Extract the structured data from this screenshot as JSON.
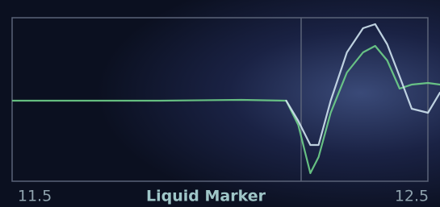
{
  "chart_data": {
    "type": "line",
    "x_label": "Liquid Marker",
    "x": [
      11.442,
      11.618,
      11.833,
      12.048,
      12.167,
      12.199,
      12.231,
      12.253,
      12.285,
      12.328,
      12.371,
      12.403,
      12.435,
      12.468,
      12.5,
      12.543,
      12.575
    ],
    "series": [
      {
        "color": "#6fd08a",
        "values": [
          0,
          0,
          0,
          0.01,
          0,
          -0.3,
          -0.9,
          -0.7,
          -0.15,
          0.35,
          0.6,
          0.68,
          0.5,
          0.15,
          0.2,
          0.22,
          0.2
        ]
      },
      {
        "color": "#cfe3f0",
        "values": [
          null,
          null,
          null,
          null,
          0,
          -0.25,
          -0.55,
          -0.55,
          0,
          0.6,
          0.9,
          0.95,
          0.7,
          0.3,
          -0.1,
          -0.15,
          0.1
        ]
      }
    ],
    "xlim": [
      11.44,
      12.575
    ],
    "ylim": [
      -1.3,
      1.25
    ],
    "xticks": [
      11.5,
      12.5
    ]
  }
}
